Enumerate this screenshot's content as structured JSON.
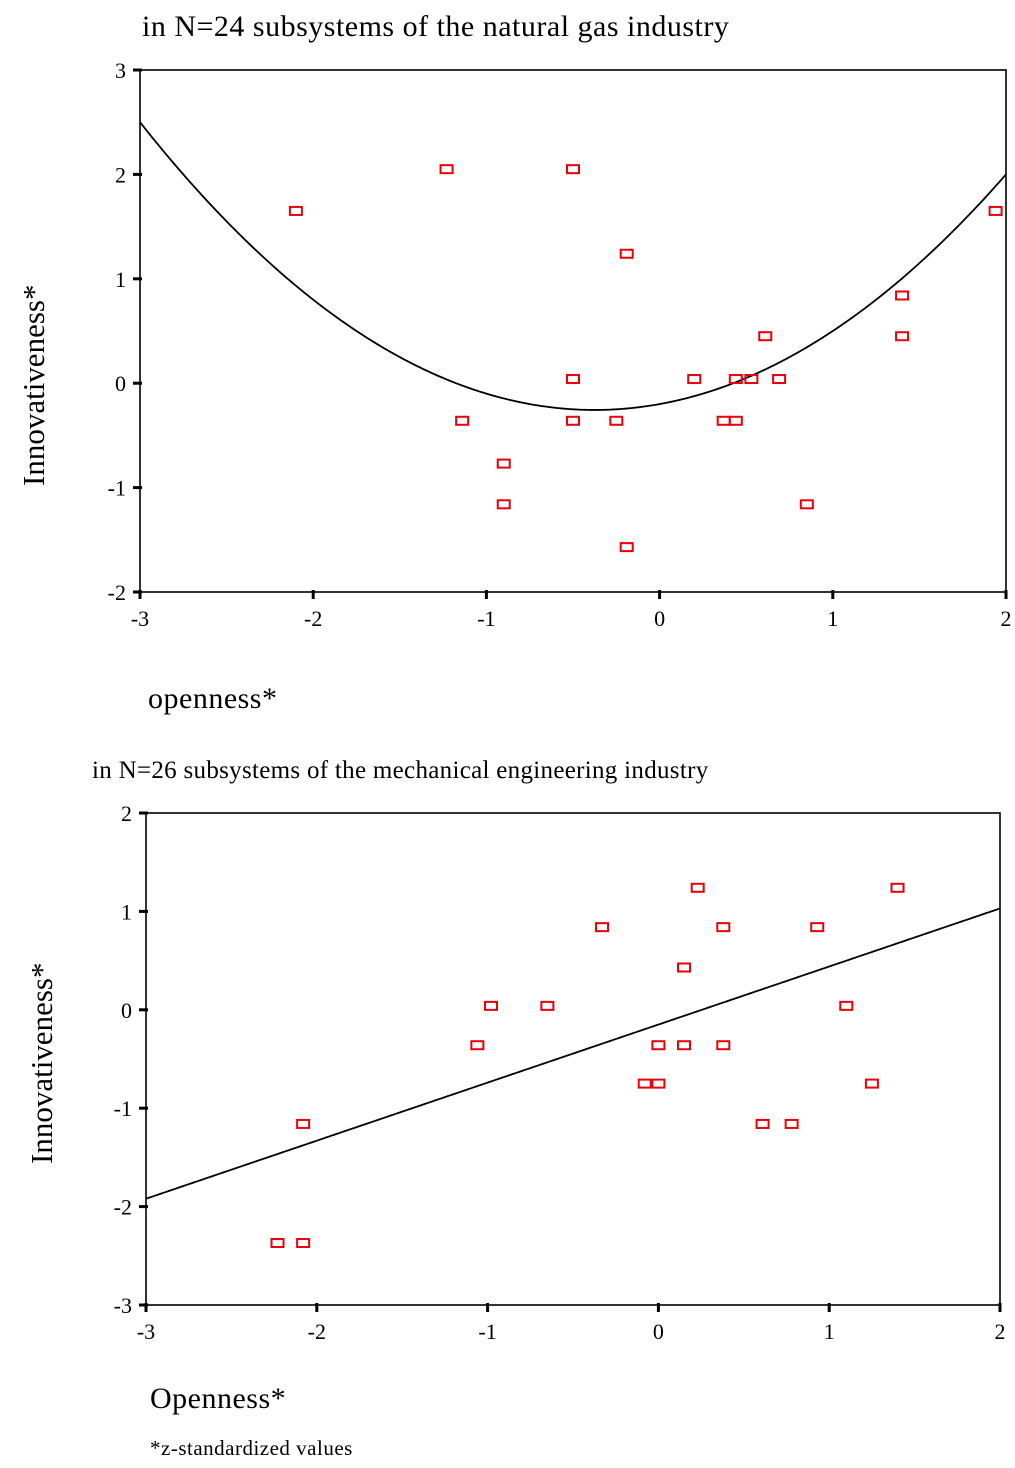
{
  "footnote": "*z-standardized values",
  "chart_data": [
    {
      "type": "scatter",
      "title": "in N=24 subsystems of the natural gas industry",
      "xlabel": "openness*",
      "ylabel": "Innovativeness*",
      "xlim": [
        -3,
        2
      ],
      "ylim": [
        -2,
        3
      ],
      "xticks": [
        -3,
        -2,
        -1,
        0,
        1,
        2
      ],
      "yticks": [
        -2,
        -1,
        0,
        1,
        2,
        3
      ],
      "xtick_labels": [
        "-3",
        "-2",
        "-1",
        "0",
        "1",
        "2"
      ],
      "ytick_labels": [
        "-2",
        "-1",
        "0",
        "1",
        "2",
        "3"
      ],
      "marker": "open-square",
      "marker_color": "#e8000b",
      "fit": {
        "kind": "quadratic",
        "coefficients": [
          -0.2,
          0.3,
          0.4
        ]
      },
      "points": [
        [
          -2.1,
          1.65
        ],
        [
          -1.23,
          2.05
        ],
        [
          -0.5,
          2.05
        ],
        [
          -0.19,
          1.24
        ],
        [
          1.94,
          1.65
        ],
        [
          1.4,
          0.84
        ],
        [
          1.4,
          0.45
        ],
        [
          0.61,
          0.45
        ],
        [
          -0.5,
          0.04
        ],
        [
          0.2,
          0.04
        ],
        [
          0.44,
          0.04
        ],
        [
          0.53,
          0.04
        ],
        [
          0.69,
          0.04
        ],
        [
          -1.14,
          -0.36
        ],
        [
          -0.5,
          -0.36
        ],
        [
          -0.25,
          -0.36
        ],
        [
          0.37,
          -0.36
        ],
        [
          0.44,
          -0.36
        ],
        [
          -0.9,
          -0.77
        ],
        [
          -0.9,
          -1.16
        ],
        [
          0.85,
          -1.16
        ],
        [
          -0.19,
          -1.57
        ]
      ]
    },
    {
      "type": "scatter",
      "title": "in N=26 subsystems of the mechanical engineering industry",
      "xlabel": "Openness*",
      "ylabel": "Innovativeness*",
      "xlim": [
        -3,
        2
      ],
      "ylim": [
        -3,
        2
      ],
      "xticks": [
        -3,
        -2,
        -1,
        0,
        1,
        2
      ],
      "yticks": [
        -3,
        -2,
        -1,
        0,
        1,
        2
      ],
      "xtick_labels": [
        "-3",
        "-2",
        "-1",
        "0",
        "1",
        "2"
      ],
      "ytick_labels": [
        "-3",
        "-2",
        "-1",
        "0",
        "1",
        "2"
      ],
      "marker": "open-square",
      "marker_color": "#e8000b",
      "fit": {
        "kind": "linear",
        "coefficients": [
          -0.15,
          0.59
        ]
      },
      "points": [
        [
          0.23,
          1.24
        ],
        [
          1.4,
          1.24
        ],
        [
          -0.33,
          0.84
        ],
        [
          0.38,
          0.84
        ],
        [
          0.93,
          0.84
        ],
        [
          0.15,
          0.43
        ],
        [
          -0.98,
          0.04
        ],
        [
          -0.65,
          0.04
        ],
        [
          1.1,
          0.04
        ],
        [
          -1.06,
          -0.36
        ],
        [
          0.0,
          -0.36
        ],
        [
          0.15,
          -0.36
        ],
        [
          0.38,
          -0.36
        ],
        [
          -0.08,
          -0.75
        ],
        [
          0.0,
          -0.75
        ],
        [
          1.25,
          -0.75
        ],
        [
          -2.08,
          -1.16
        ],
        [
          0.61,
          -1.16
        ],
        [
          0.78,
          -1.16
        ],
        [
          -2.23,
          -2.37
        ],
        [
          -2.08,
          -2.37
        ]
      ]
    }
  ]
}
